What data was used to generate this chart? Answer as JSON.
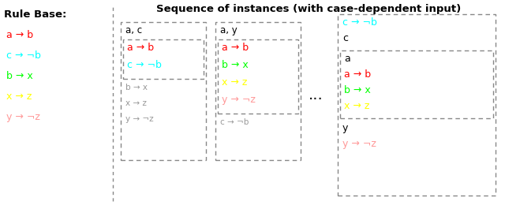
{
  "title": "Sequence of instances (with case-dependent input)",
  "rule_base_label": "Rule Base:",
  "rule_base_rules": [
    {
      "text": "a → b",
      "color": "#ff0000"
    },
    {
      "text": "c → ¬b",
      "color": "#00ffff"
    },
    {
      "text": "b → x",
      "color": "#00ff00"
    },
    {
      "text": "x → z",
      "color": "#ffff00"
    },
    {
      "text": "y → ¬z",
      "color": "#ff9999"
    }
  ],
  "inst1_header": "a, c",
  "inst1_highlighted": [
    {
      "text": "a → b",
      "color": "#ff0000"
    },
    {
      "text": "c → ¬b",
      "color": "#00ffff"
    }
  ],
  "inst1_gray": [
    "b → x",
    "x → z",
    "y → ¬z"
  ],
  "inst2_header": "a, y",
  "inst2_highlighted": [
    {
      "text": "a → b",
      "color": "#ff0000"
    },
    {
      "text": "b → x",
      "color": "#00ff00"
    },
    {
      "text": "x → z",
      "color": "#ffff00"
    },
    {
      "text": "y → ¬z",
      "color": "#ff9999"
    }
  ],
  "inst2_gray": [
    "c → ¬b"
  ],
  "last_top": [
    {
      "text": "c → ¬b",
      "color": "#00ffff"
    },
    {
      "text": "c",
      "color": "#000000"
    }
  ],
  "last_inner": [
    {
      "text": "a",
      "color": "#000000"
    },
    {
      "text": "a → b",
      "color": "#ff0000"
    },
    {
      "text": "b → x",
      "color": "#00ff00"
    },
    {
      "text": "x → z",
      "color": "#ffff00"
    }
  ],
  "last_bottom": [
    {
      "text": "y",
      "color": "#000000"
    },
    {
      "text": "y → ¬z",
      "color": "#ff9999"
    }
  ],
  "dots": "...",
  "bg_color": "#ffffff",
  "gray_color": "#999999",
  "sep_color": "#888888",
  "box_color": "#888888"
}
